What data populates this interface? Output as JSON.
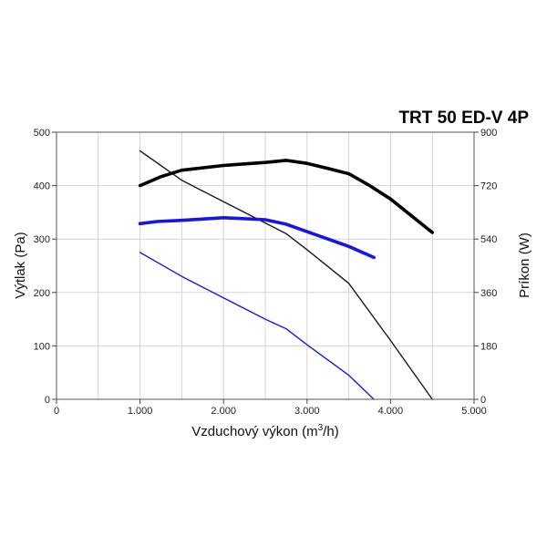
{
  "chart_data": {
    "type": "line",
    "title": "TRT 50 ED-V 4P",
    "xlabel": "Vzduchový výkon (m",
    "xlabel_sup": "3",
    "xlabel_end": "/h)",
    "ylabel": "Výtlak (Pa)",
    "y2label": "Príkon (W)",
    "xlim": [
      0,
      5000
    ],
    "ylim": [
      0,
      500
    ],
    "y2lim": [
      0,
      900
    ],
    "xticks": [
      0,
      1000,
      2000,
      3000,
      4000,
      5000
    ],
    "xtick_labels": [
      "0",
      "1.000",
      "2.000",
      "3.000",
      "4.000",
      "5.000"
    ],
    "yticks": [
      0,
      100,
      200,
      300,
      400,
      500
    ],
    "ytick_labels": [
      "0",
      "100",
      "200",
      "300",
      "400",
      "500"
    ],
    "y2ticks": [
      0,
      180,
      360,
      540,
      720,
      900
    ],
    "y2tick_labels": [
      "0",
      "180",
      "360",
      "540",
      "720",
      "900"
    ],
    "grid": true,
    "series": [
      {
        "axis": "left",
        "color": "#1a1a1a",
        "weight": "thin",
        "x": [
          1000,
          1500,
          2000,
          2500,
          2750,
          3000,
          3500,
          4000,
          4500
        ],
        "y": [
          465,
          410,
          370,
          330,
          310,
          280,
          217,
          110,
          0
        ]
      },
      {
        "axis": "left",
        "color": "#1a1adc",
        "weight": "thin",
        "x": [
          1000,
          1500,
          2000,
          2500,
          2750,
          3000,
          3500,
          3800
        ],
        "y": [
          275,
          230,
          190,
          150,
          132,
          102,
          45,
          0
        ]
      },
      {
        "axis": "right",
        "color": "#000000",
        "weight": "thick",
        "x": [
          1000,
          1250,
          1500,
          2000,
          2500,
          2750,
          3000,
          3250,
          3500,
          3750,
          4000,
          4500
        ],
        "y": [
          720,
          750,
          772,
          788,
          798,
          805,
          795,
          778,
          760,
          720,
          675,
          562
        ]
      },
      {
        "axis": "right",
        "color": "#1515e6",
        "weight": "thick",
        "x": [
          1000,
          1200,
          1500,
          2000,
          2500,
          2750,
          3000,
          3500,
          3800
        ],
        "y": [
          592,
          599,
          603,
          612,
          605,
          590,
          565,
          515,
          478
        ]
      }
    ]
  }
}
